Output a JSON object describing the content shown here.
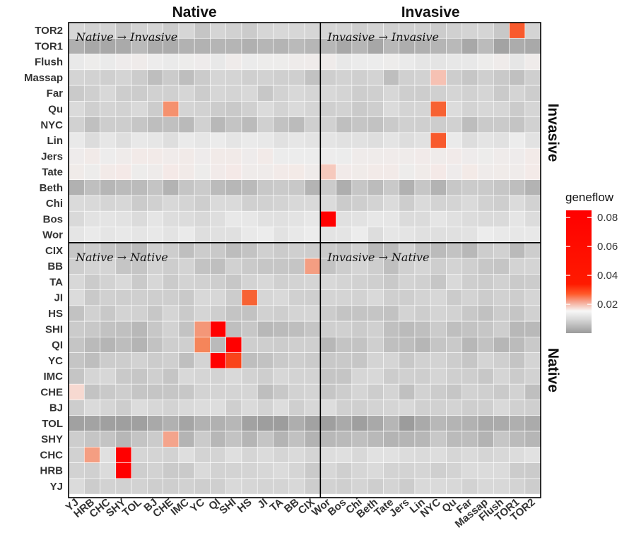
{
  "chart_data": {
    "type": "heatmap",
    "column_groups": [
      {
        "label": "Native",
        "categories": [
          "YJ",
          "HRB",
          "CHC",
          "SHY",
          "TOL",
          "BJ",
          "CHE",
          "IMC",
          "YC",
          "QI",
          "SHI",
          "HS",
          "JI",
          "TA",
          "BB",
          "CIX"
        ]
      },
      {
        "label": "Invasive",
        "categories": [
          "Wor",
          "Bos",
          "Chi",
          "Beth",
          "Tate",
          "Jers",
          "Lin",
          "NYC",
          "Qu",
          "Far",
          "Massap",
          "Flush",
          "TOR1",
          "TOR2"
        ]
      }
    ],
    "row_groups": [
      {
        "label": "Invasive",
        "categories": [
          "TOR2",
          "TOR1",
          "Flush",
          "Massap",
          "Far",
          "Qu",
          "NYC",
          "Lin",
          "Jers",
          "Tate",
          "Beth",
          "Chi",
          "Bos",
          "Wor"
        ]
      },
      {
        "label": "Native",
        "categories": [
          "CIX",
          "BB",
          "TA",
          "JI",
          "HS",
          "SHI",
          "QI",
          "YC",
          "IMC",
          "CHE",
          "BJ",
          "TOL",
          "SHY",
          "CHC",
          "HRB",
          "YJ"
        ]
      }
    ],
    "facets": [
      {
        "row_group": "Invasive",
        "col_group": "Native",
        "label": "Native → Invasive"
      },
      {
        "row_group": "Invasive",
        "col_group": "Invasive",
        "label": "Invasive → Invasive"
      },
      {
        "row_group": "Native",
        "col_group": "Native",
        "label": "Native → Native"
      },
      {
        "row_group": "Native",
        "col_group": "Invasive",
        "label": "Invasive → Native"
      }
    ],
    "legend": {
      "title": "geneflow",
      "ticks": [
        0.02,
        0.04,
        0.06,
        0.08
      ],
      "range": [
        0,
        0.085
      ],
      "position": "right"
    },
    "row_baseline": {
      "TOR2": 0.0005,
      "TOR1": -0.002,
      "Flush": 0.004,
      "Massap": 0.0,
      "Far": 0.0005,
      "Qu": 0.0008,
      "NYC": -0.0005,
      "Lin": 0.003,
      "Jers": 0.005,
      "Tate": 0.0055,
      "Beth": -0.0012,
      "Chi": 0.0008,
      "Bos": 0.0025,
      "Wor": 0.003,
      "CIX": -0.0005,
      "BB": 0.0,
      "TA": 0.0005,
      "JI": 0.0008,
      "HS": 0.0,
      "SHI": -0.0005,
      "QI": -0.0008,
      "YC": 0.0,
      "IMC": 0.0005,
      "CHE": 0.0,
      "BJ": 0.001,
      "TOL": -0.0025,
      "SHY": -0.001,
      "CHC": 0.0015,
      "HRB": 0.0008,
      "YJ": 0.0008
    },
    "highlights": [
      {
        "row": "TOR2",
        "col": "TOR1",
        "value": 0.028
      },
      {
        "row": "Qu",
        "col": "CHE",
        "value": 0.02
      },
      {
        "row": "Qu",
        "col": "NYC",
        "value": 0.027
      },
      {
        "row": "Lin",
        "col": "NYC",
        "value": 0.028
      },
      {
        "row": "Massap",
        "col": "NYC",
        "value": 0.013
      },
      {
        "row": "NYC",
        "col": "NYC",
        "value": 0.0
      },
      {
        "row": "Bos",
        "col": "Wor",
        "value": 0.085
      },
      {
        "row": "Tate",
        "col": "Wor",
        "value": 0.012
      },
      {
        "row": "CIX",
        "col": "CIX",
        "value": 0.0
      },
      {
        "row": "BB",
        "col": "CIX",
        "value": 0.018
      },
      {
        "row": "JI",
        "col": "HS",
        "value": 0.027
      },
      {
        "row": "SHI",
        "col": "YC",
        "value": 0.019
      },
      {
        "row": "SHI",
        "col": "QI",
        "value": 0.085
      },
      {
        "row": "QI",
        "col": "YC",
        "value": 0.022
      },
      {
        "row": "QI",
        "col": "SHI",
        "value": 0.085
      },
      {
        "row": "YC",
        "col": "QI",
        "value": 0.085
      },
      {
        "row": "YC",
        "col": "SHI",
        "value": 0.031
      },
      {
        "row": "SHY",
        "col": "CHE",
        "value": 0.017
      },
      {
        "row": "CHC",
        "col": "HRB",
        "value": 0.018
      },
      {
        "row": "CHC",
        "col": "SHY",
        "value": 0.085
      },
      {
        "row": "HRB",
        "col": "SHY",
        "value": 0.085
      },
      {
        "row": "CHE",
        "col": "YJ",
        "value": 0.01
      }
    ]
  },
  "colors": {
    "border": "#000000",
    "gradient_stops": [
      "#9a9a9a",
      "#dcdcdc",
      "#f7f7f7",
      "#f6a08a",
      "#ff5a2a",
      "#ff1a00",
      "#ff0000"
    ]
  }
}
